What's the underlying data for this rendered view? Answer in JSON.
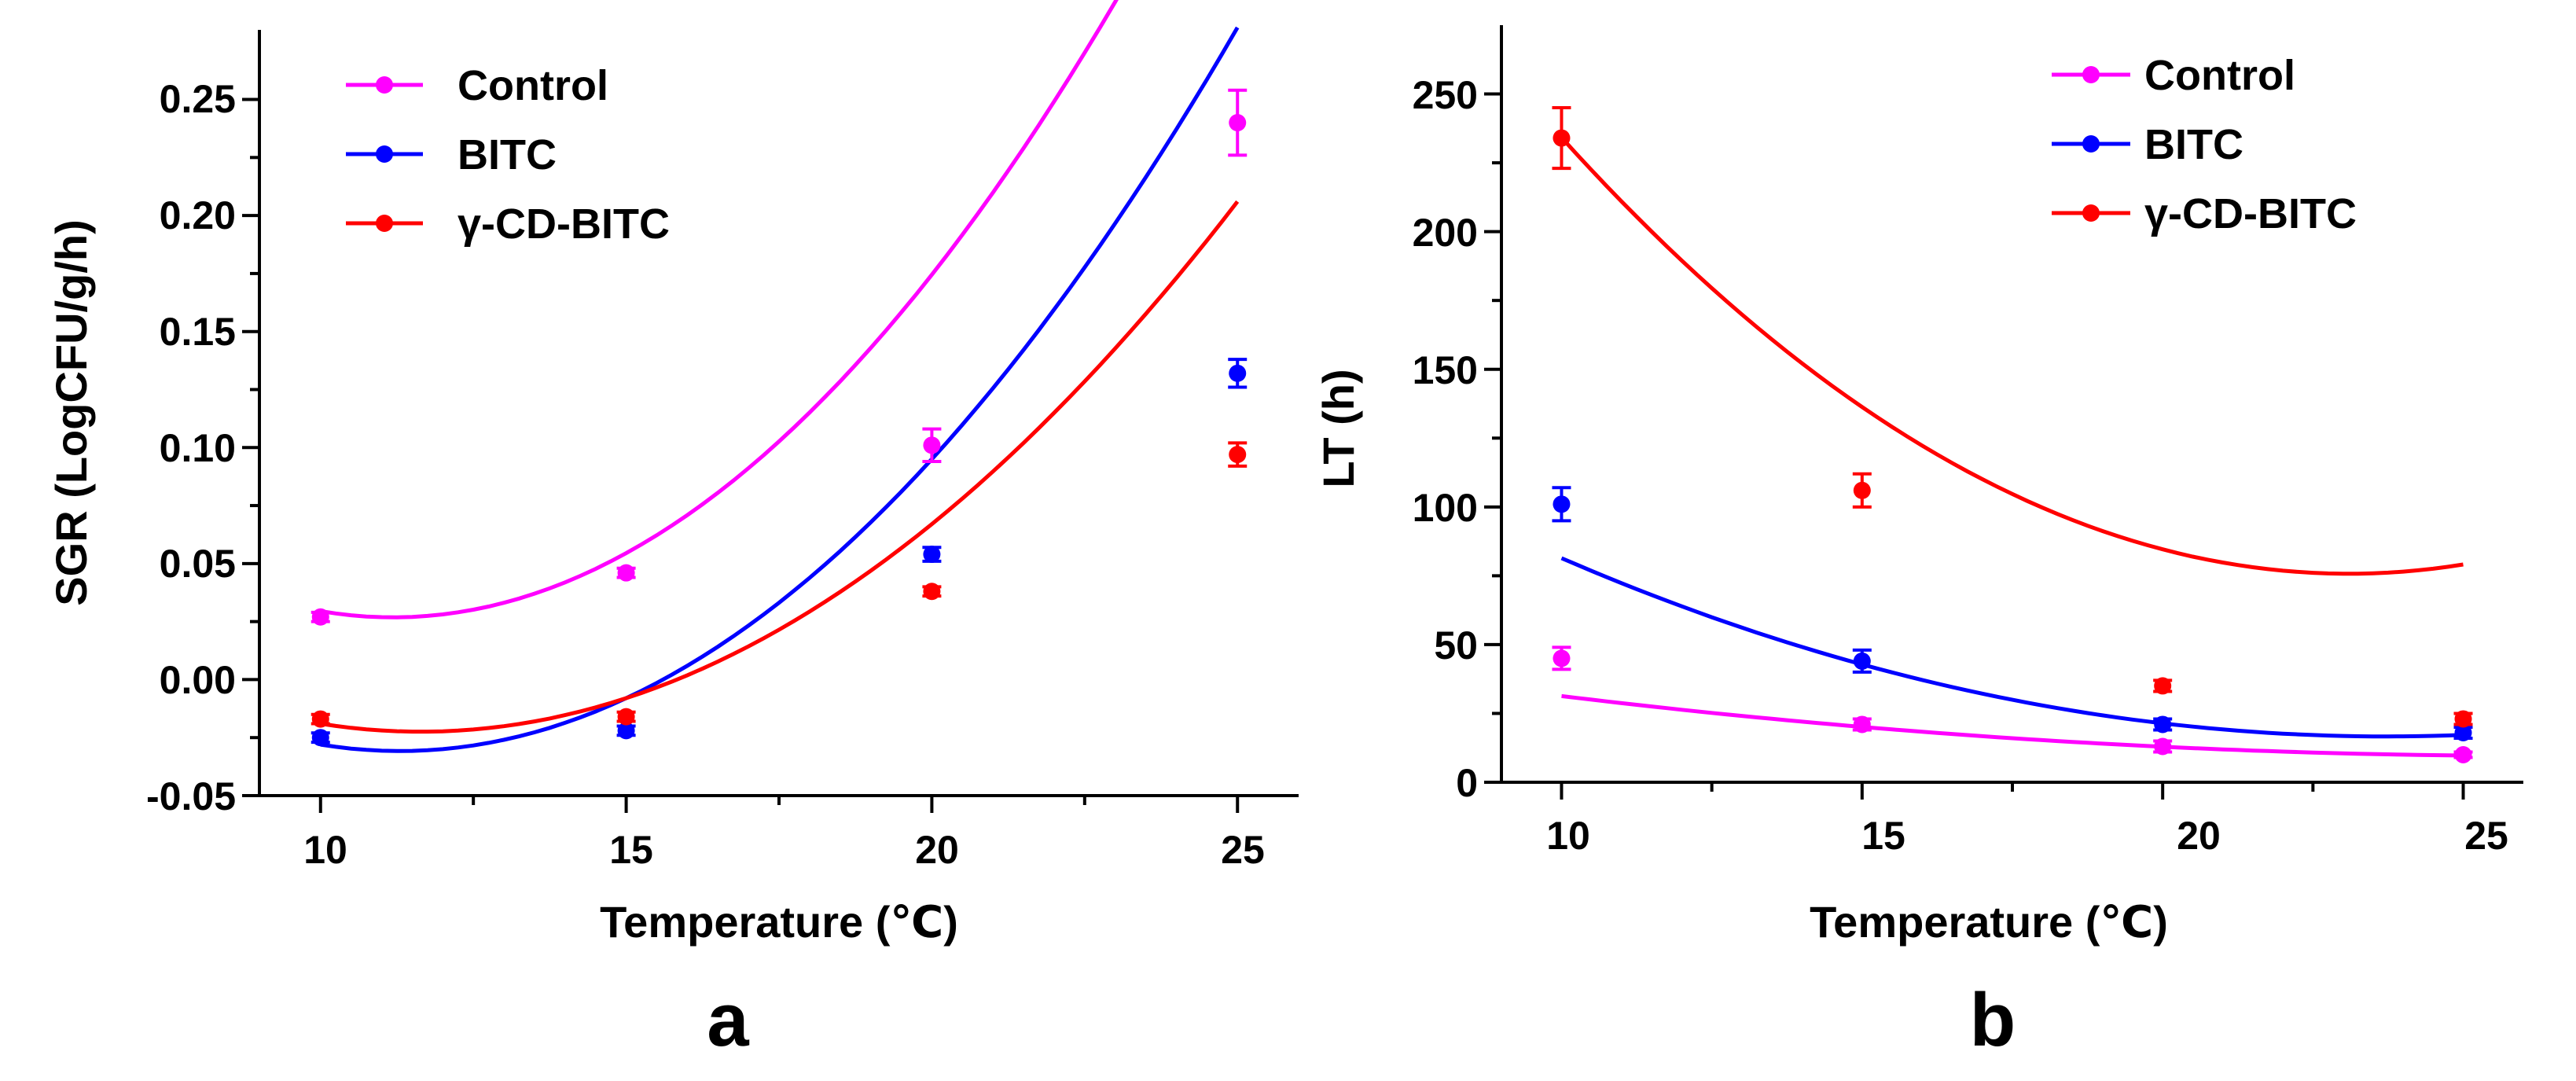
{
  "chart_data": [
    {
      "panel_label": "a",
      "type": "scatter",
      "xlabel": "Temperature (℃)",
      "ylabel": "SGR (LogCFU/g/h)",
      "xlim": [
        9,
        26
      ],
      "ylim": [
        -0.05,
        0.28
      ],
      "xticks": [
        10,
        15,
        20,
        25
      ],
      "yticks": [
        -0.05,
        0.0,
        0.05,
        0.1,
        0.15,
        0.2,
        0.25
      ],
      "ytick_labels": [
        "-0.05",
        "0.00",
        "0.05",
        "0.10",
        "0.15",
        "0.20",
        "0.25"
      ],
      "legend_position": "top-left",
      "series": [
        {
          "name": "Control",
          "color": "#ff00ff",
          "x": [
            10,
            15,
            20,
            25
          ],
          "y": [
            0.027,
            0.046,
            0.101,
            0.24
          ],
          "err": [
            0.002,
            0.002,
            0.007,
            0.014
          ],
          "fit_coef": [
            0.0019,
            -0.0425,
            0.2645
          ]
        },
        {
          "name": "BITC",
          "color": "#0000ff",
          "x": [
            10,
            15,
            20,
            25
          ],
          "y": [
            -0.025,
            -0.022,
            0.054,
            0.132
          ],
          "err": [
            0.002,
            0.002,
            0.003,
            0.006
          ],
          "fit_coef": [
            0.00166,
            -0.0375,
            0.181
          ]
        },
        {
          "name": "γ-CD-BITC",
          "color": "#ff0000",
          "x": [
            10,
            15,
            20,
            25
          ],
          "y": [
            -0.017,
            -0.016,
            0.038,
            0.097
          ],
          "err": [
            0.002,
            0.002,
            0.002,
            0.005
          ],
          "fit_coef": [
            0.00128,
            -0.0298,
            0.151
          ]
        }
      ]
    },
    {
      "panel_label": "b",
      "type": "scatter",
      "xlabel": "Temperature (℃)",
      "ylabel": "LT (h)",
      "xlim": [
        9,
        26
      ],
      "ylim": [
        0,
        275
      ],
      "xticks": [
        10,
        15,
        20,
        25
      ],
      "yticks": [
        0,
        50,
        100,
        150,
        200,
        250
      ],
      "ytick_labels": [
        "0",
        "50",
        "100",
        "150",
        "200",
        "250"
      ],
      "legend_position": "top-right",
      "series": [
        {
          "name": "Control",
          "color": "#ff00ff",
          "x": [
            10,
            15,
            20,
            25
          ],
          "y": [
            45,
            21,
            13,
            10
          ],
          "err": [
            4,
            2,
            2,
            1
          ],
          "fit_coef": [
            0.08,
            -4.24,
            65.7
          ]
        },
        {
          "name": "BITC",
          "color": "#0000ff",
          "x": [
            10,
            15,
            20,
            25
          ],
          "y": [
            101,
            44,
            21,
            18
          ],
          "err": [
            6,
            4,
            2,
            2
          ],
          "fit_coef": [
            0.344,
            -16.32,
            210.2
          ]
        },
        {
          "name": "γ-CD-BITC",
          "color": "#ff0000",
          "x": [
            10,
            15,
            20,
            25
          ],
          "y": [
            234,
            106,
            35,
            23
          ],
          "err": [
            11,
            6,
            2,
            2
          ],
          "fit_coef": [
            0.924,
            -42.68,
            568.6
          ]
        }
      ]
    }
  ]
}
